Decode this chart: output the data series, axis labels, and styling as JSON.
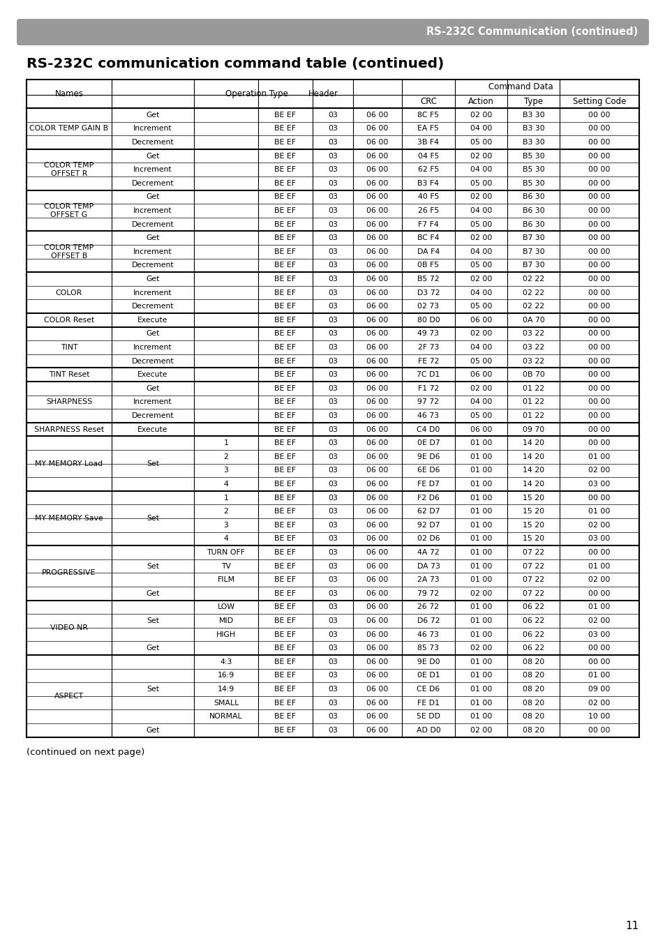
{
  "page_title": "RS-232C Communication (continued)",
  "section_title": "RS-232C communication command table (continued)",
  "footer_text": "(continued on next page)",
  "page_number": "11",
  "rows": [
    [
      "COLOR TEMP GAIN B",
      "Get",
      "",
      "BE EF",
      "03",
      "06 00",
      "8C F5",
      "02 00",
      "B3 30",
      "00 00"
    ],
    [
      "",
      "Increment",
      "",
      "BE EF",
      "03",
      "06 00",
      "EA F5",
      "04 00",
      "B3 30",
      "00 00"
    ],
    [
      "",
      "Decrement",
      "",
      "BE EF",
      "03",
      "06 00",
      "3B F4",
      "05 00",
      "B3 30",
      "00 00"
    ],
    [
      "COLOR TEMP\nOFFSET R",
      "Get",
      "",
      "BE EF",
      "03",
      "06 00",
      "04 F5",
      "02 00",
      "B5 30",
      "00 00"
    ],
    [
      "",
      "Increment",
      "",
      "BE EF",
      "03",
      "06 00",
      "62 F5",
      "04 00",
      "B5 30",
      "00 00"
    ],
    [
      "",
      "Decrement",
      "",
      "BE EF",
      "03",
      "06 00",
      "B3 F4",
      "05 00",
      "B5 30",
      "00 00"
    ],
    [
      "COLOR TEMP\nOFFSET G",
      "Get",
      "",
      "BE EF",
      "03",
      "06 00",
      "40 F5",
      "02 00",
      "B6 30",
      "00 00"
    ],
    [
      "",
      "Increment",
      "",
      "BE EF",
      "03",
      "06 00",
      "26 F5",
      "04 00",
      "B6 30",
      "00 00"
    ],
    [
      "",
      "Decrement",
      "",
      "BE EF",
      "03",
      "06 00",
      "F7 F4",
      "05 00",
      "B6 30",
      "00 00"
    ],
    [
      "COLOR TEMP\nOFFSET B",
      "Get",
      "",
      "BE EF",
      "03",
      "06 00",
      "BC F4",
      "02 00",
      "B7 30",
      "00 00"
    ],
    [
      "",
      "Increment",
      "",
      "BE EF",
      "03",
      "06 00",
      "DA F4",
      "04 00",
      "B7 30",
      "00 00"
    ],
    [
      "",
      "Decrement",
      "",
      "BE EF",
      "03",
      "06 00",
      "0B F5",
      "05 00",
      "B7 30",
      "00 00"
    ],
    [
      "COLOR",
      "Get",
      "",
      "BE EF",
      "03",
      "06 00",
      "B5 72",
      "02 00",
      "02 22",
      "00 00"
    ],
    [
      "",
      "Increment",
      "",
      "BE EF",
      "03",
      "06 00",
      "D3 72",
      "04 00",
      "02 22",
      "00 00"
    ],
    [
      "",
      "Decrement",
      "",
      "BE EF",
      "03",
      "06 00",
      "02 73",
      "05 00",
      "02 22",
      "00 00"
    ],
    [
      "COLOR Reset",
      "Execute",
      "",
      "BE EF",
      "03",
      "06 00",
      "80 D0",
      "06 00",
      "0A 70",
      "00 00"
    ],
    [
      "TINT",
      "Get",
      "",
      "BE EF",
      "03",
      "06 00",
      "49 73",
      "02 00",
      "03 22",
      "00 00"
    ],
    [
      "",
      "Increment",
      "",
      "BE EF",
      "03",
      "06 00",
      "2F 73",
      "04 00",
      "03 22",
      "00 00"
    ],
    [
      "",
      "Decrement",
      "",
      "BE EF",
      "03",
      "06 00",
      "FE 72",
      "05 00",
      "03 22",
      "00 00"
    ],
    [
      "TINT Reset",
      "Execute",
      "",
      "BE EF",
      "03",
      "06 00",
      "7C D1",
      "06 00",
      "0B 70",
      "00 00"
    ],
    [
      "SHARPNESS",
      "Get",
      "",
      "BE EF",
      "03",
      "06 00",
      "F1 72",
      "02 00",
      "01 22",
      "00 00"
    ],
    [
      "",
      "Increment",
      "",
      "BE EF",
      "03",
      "06 00",
      "97 72",
      "04 00",
      "01 22",
      "00 00"
    ],
    [
      "",
      "Decrement",
      "",
      "BE EF",
      "03",
      "06 00",
      "46 73",
      "05 00",
      "01 22",
      "00 00"
    ],
    [
      "SHARPNESS Reset",
      "Execute",
      "",
      "BE EF",
      "03",
      "06 00",
      "C4 D0",
      "06 00",
      "09 70",
      "00 00"
    ],
    [
      "MY MEMORY Load",
      "Set",
      "1",
      "BE EF",
      "03",
      "06 00",
      "0E D7",
      "01 00",
      "14 20",
      "00 00"
    ],
    [
      "",
      "",
      "2",
      "BE EF",
      "03",
      "06 00",
      "9E D6",
      "01 00",
      "14 20",
      "01 00"
    ],
    [
      "",
      "",
      "3",
      "BE EF",
      "03",
      "06 00",
      "6E D6",
      "01 00",
      "14 20",
      "02 00"
    ],
    [
      "",
      "",
      "4",
      "BE EF",
      "03",
      "06 00",
      "FE D7",
      "01 00",
      "14 20",
      "03 00"
    ],
    [
      "MY MEMORY Save",
      "Set",
      "1",
      "BE EF",
      "03",
      "06 00",
      "F2 D6",
      "01 00",
      "15 20",
      "00 00"
    ],
    [
      "",
      "",
      "2",
      "BE EF",
      "03",
      "06 00",
      "62 D7",
      "01 00",
      "15 20",
      "01 00"
    ],
    [
      "",
      "",
      "3",
      "BE EF",
      "03",
      "06 00",
      "92 D7",
      "01 00",
      "15 20",
      "02 00"
    ],
    [
      "",
      "",
      "4",
      "BE EF",
      "03",
      "06 00",
      "02 D6",
      "01 00",
      "15 20",
      "03 00"
    ],
    [
      "PROGRESSIVE",
      "Set",
      "TURN OFF",
      "BE EF",
      "03",
      "06 00",
      "4A 72",
      "01 00",
      "07 22",
      "00 00"
    ],
    [
      "",
      "",
      "TV",
      "BE EF",
      "03",
      "06 00",
      "DA 73",
      "01 00",
      "07 22",
      "01 00"
    ],
    [
      "",
      "",
      "FILM",
      "BE EF",
      "03",
      "06 00",
      "2A 73",
      "01 00",
      "07 22",
      "02 00"
    ],
    [
      "",
      "Get",
      "",
      "BE EF",
      "03",
      "06 00",
      "79 72",
      "02 00",
      "07 22",
      "00 00"
    ],
    [
      "VIDEO NR",
      "Set",
      "LOW",
      "BE EF",
      "03",
      "06 00",
      "26 72",
      "01 00",
      "06 22",
      "01 00"
    ],
    [
      "",
      "",
      "MID",
      "BE EF",
      "03",
      "06 00",
      "D6 72",
      "01 00",
      "06 22",
      "02 00"
    ],
    [
      "",
      "",
      "HIGH",
      "BE EF",
      "03",
      "06 00",
      "46 73",
      "01 00",
      "06 22",
      "03 00"
    ],
    [
      "",
      "Get",
      "",
      "BE EF",
      "03",
      "06 00",
      "85 73",
      "02 00",
      "06 22",
      "00 00"
    ],
    [
      "ASPECT",
      "Set",
      "4:3",
      "BE EF",
      "03",
      "06 00",
      "9E D0",
      "01 00",
      "08 20",
      "00 00"
    ],
    [
      "",
      "",
      "16:9",
      "BE EF",
      "03",
      "06 00",
      "0E D1",
      "01 00",
      "08 20",
      "01 00"
    ],
    [
      "",
      "",
      "14:9",
      "BE EF",
      "03",
      "06 00",
      "CE D6",
      "01 00",
      "08 20",
      "09 00"
    ],
    [
      "",
      "",
      "SMALL",
      "BE EF",
      "03",
      "06 00",
      "FE D1",
      "01 00",
      "08 20",
      "02 00"
    ],
    [
      "",
      "",
      "NORMAL",
      "BE EF",
      "03",
      "06 00",
      "5E DD",
      "01 00",
      "08 20",
      "10 00"
    ],
    [
      "",
      "Get",
      "",
      "BE EF",
      "03",
      "06 00",
      "AD D0",
      "02 00",
      "08 20",
      "00 00"
    ]
  ],
  "group_starts": [
    0,
    3,
    6,
    9,
    12,
    15,
    16,
    19,
    20,
    23,
    24,
    28,
    32,
    36,
    40
  ],
  "name_groups": {
    "0": [
      "COLOR TEMP GAIN B",
      0,
      2
    ],
    "3": [
      "COLOR TEMP\nOFFSET R",
      3,
      5
    ],
    "6": [
      "COLOR TEMP\nOFFSET G",
      6,
      8
    ],
    "9": [
      "COLOR TEMP\nOFFSET B",
      9,
      11
    ],
    "12": [
      "COLOR",
      12,
      14
    ],
    "15": [
      "COLOR Reset",
      15,
      15
    ],
    "16": [
      "TINT",
      16,
      18
    ],
    "19": [
      "TINT Reset",
      19,
      19
    ],
    "20": [
      "SHARPNESS",
      20,
      22
    ],
    "23": [
      "SHARPNESS Reset",
      23,
      23
    ],
    "24": [
      "MY MEMORY Load",
      24,
      27
    ],
    "28": [
      "MY MEMORY Save",
      28,
      31
    ],
    "32": [
      "PROGRESSIVE",
      32,
      35
    ],
    "36": [
      "VIDEO NR",
      36,
      39
    ],
    "40": [
      "ASPECT",
      40,
      45
    ]
  },
  "op_groups": {
    "24": [
      "Set",
      24,
      27
    ],
    "28": [
      "Set",
      28,
      31
    ],
    "32": [
      "Set",
      32,
      34
    ],
    "36": [
      "Set",
      36,
      38
    ],
    "40": [
      "Set",
      40,
      44
    ]
  },
  "bg_color": "#ffffff",
  "banner_color": "#999999",
  "banner_text_color": "#ffffff"
}
